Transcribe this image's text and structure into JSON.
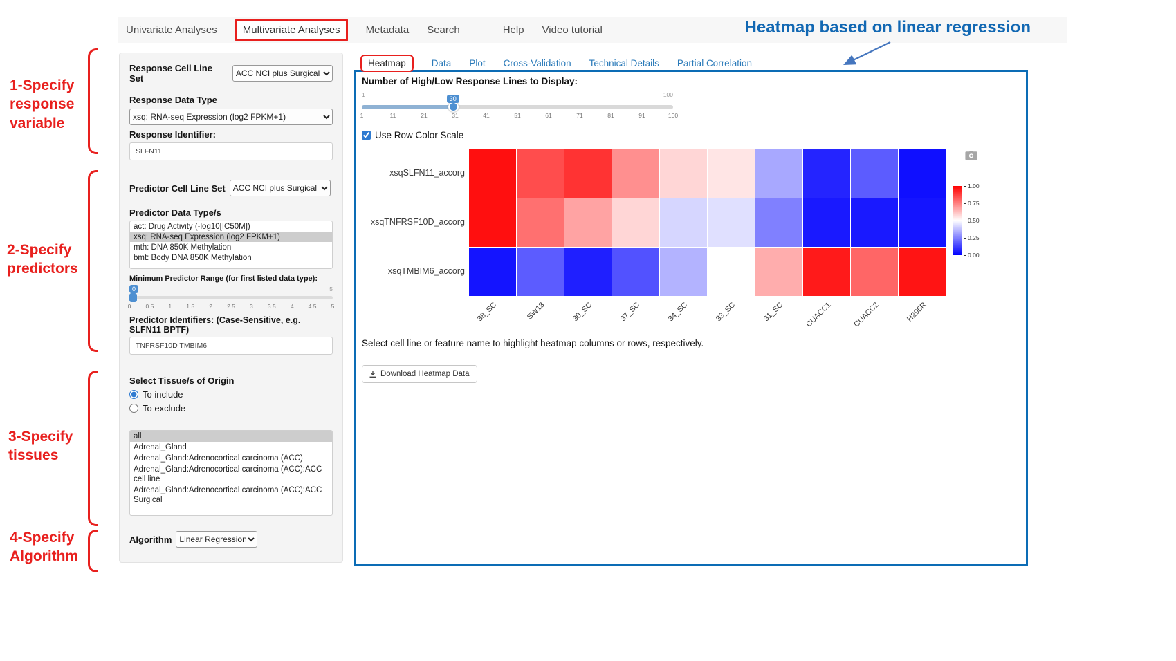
{
  "nav": {
    "items": [
      {
        "label": "Univariate Analyses",
        "highlighted": false
      },
      {
        "label": "Multivariate Analyses",
        "highlighted": true
      },
      {
        "label": "Metadata",
        "highlighted": false
      },
      {
        "label": "Search",
        "highlighted": false
      },
      {
        "label": "Help",
        "highlighted": false
      },
      {
        "label": "Video tutorial",
        "highlighted": false
      }
    ]
  },
  "annotations": {
    "title": "Heatmap based on linear regression",
    "accent_red": "#e8201e",
    "accent_blue": "#1268b3",
    "steps": [
      {
        "label": "1-Specify response variable"
      },
      {
        "label": "2-Specify predictors"
      },
      {
        "label": "3-Specify tissues"
      },
      {
        "label": "4-Specify Algorithm"
      }
    ]
  },
  "sidebar": {
    "response_cell_line_set": {
      "label": "Response Cell Line Set",
      "value": "ACC NCI plus Surgical"
    },
    "response_data_type": {
      "label": "Response Data Type",
      "value": "xsq: RNA-seq Expression (log2 FPKM+1)"
    },
    "response_identifier": {
      "label": "Response Identifier:",
      "value": "SLFN11"
    },
    "predictor_cell_line_set": {
      "label": "Predictor Cell Line Set",
      "value": "ACC NCI plus Surgical"
    },
    "predictor_data_types": {
      "label": "Predictor Data Type/s",
      "options": [
        "act: Drug Activity (-log10[IC50M])",
        "xsq: RNA-seq Expression (log2 FPKM+1)",
        "mth: DNA 850K Methylation",
        "bmt: Body DNA 850K Methylation"
      ],
      "selected_index": 1
    },
    "min_predictor_range": {
      "label": "Minimum Predictor Range (for first listed data type):",
      "value": 0,
      "min": 0,
      "max": 5,
      "max_label": "5",
      "ticks": [
        "0",
        "0.5",
        "1",
        "1.5",
        "2",
        "2.5",
        "3",
        "3.5",
        "4",
        "4.5",
        "5"
      ]
    },
    "predictor_identifiers": {
      "label": "Predictor Identifiers: (Case-Sensitive, e.g. SLFN11 BPTF)",
      "value": "TNFRSF10D TMBIM6"
    },
    "tissue": {
      "label": "Select Tissue/s of Origin",
      "radio_include": "To include",
      "radio_exclude": "To exclude",
      "include_selected": true,
      "options": [
        "all",
        "Adrenal_Gland",
        "Adrenal_Gland:Adrenocortical carcinoma (ACC)",
        "Adrenal_Gland:Adrenocortical carcinoma (ACC):ACC cell line",
        "Adrenal_Gland:Adrenocortical carcinoma (ACC):ACC Surgical"
      ],
      "selected_index": 0
    },
    "algorithm": {
      "label": "Algorithm",
      "value": "Linear Regression"
    }
  },
  "main": {
    "tabs": [
      {
        "label": "Heatmap",
        "active": true
      },
      {
        "label": "Data",
        "active": false
      },
      {
        "label": "Plot",
        "active": false
      },
      {
        "label": "Cross-Validation",
        "active": false
      },
      {
        "label": "Technical Details",
        "active": false
      },
      {
        "label": "Partial Correlation",
        "active": false
      }
    ],
    "lines_slider": {
      "label": "Number of High/Low Response Lines to Display:",
      "value": 30,
      "min": 1,
      "max": 100,
      "min_label": "1",
      "max_label": "100",
      "ticks": [
        "1",
        "11",
        "21",
        "31",
        "41",
        "51",
        "61",
        "71",
        "81",
        "91",
        "100"
      ]
    },
    "row_color_scale": {
      "label": "Use Row Color Scale",
      "checked": true
    },
    "hint": "Select cell line or feature name to highlight heatmap columns or rows, respectively.",
    "download_button": "Download Heatmap Data"
  },
  "chart_data": {
    "type": "heatmap",
    "rows": [
      "xsqSLFN11_accorg",
      "xsqTNFRSF10D_accorg",
      "xsqTMBIM6_accorg"
    ],
    "columns": [
      "38_SC",
      "SW13",
      "30_SC",
      "37_SC",
      "34_SC",
      "33_SC",
      "31_SC",
      "CUACC1",
      "CUACC2",
      "H295R"
    ],
    "values": [
      [
        0.97,
        0.85,
        0.9,
        0.72,
        0.58,
        0.55,
        0.33,
        0.07,
        0.18,
        0.03
      ],
      [
        0.97,
        0.78,
        0.68,
        0.58,
        0.42,
        0.44,
        0.25,
        0.05,
        0.05,
        0.04
      ],
      [
        0.04,
        0.18,
        0.06,
        0.16,
        0.35,
        0.5,
        0.66,
        0.95,
        0.8,
        0.96
      ]
    ],
    "value_range": [
      0.0,
      1.0
    ],
    "colorscale": {
      "high_color": "#ff0000",
      "mid_color": "#ffffff",
      "low_color": "#0000ff"
    },
    "colorbar_ticks": [
      "1.00",
      "0.75",
      "0.50",
      "0.25",
      "0.00"
    ],
    "legend_position": "right"
  }
}
